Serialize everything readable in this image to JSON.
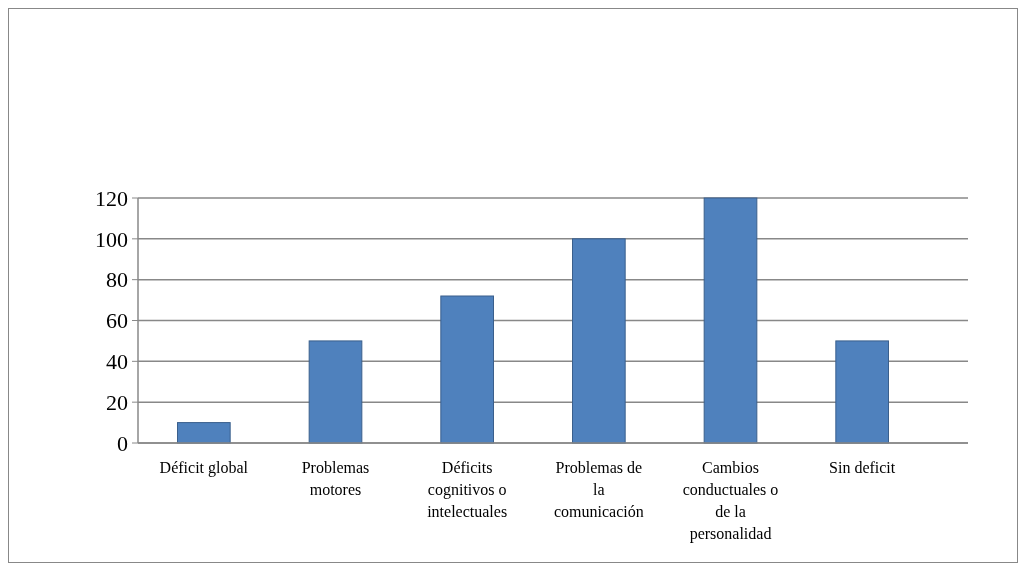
{
  "chart_data": {
    "type": "bar",
    "categories": [
      "Déficit global",
      "Problemas motores",
      "Déficits cognitivos o intelectuales",
      "Problemas de la comunicación",
      "Cambios conductuales o de la personalidad",
      "Sin deficit"
    ],
    "values": [
      10,
      50,
      72,
      100,
      120,
      50
    ],
    "color": "#4f81bd",
    "ylim": [
      0,
      120
    ],
    "yticks": [
      0,
      20,
      40,
      60,
      80,
      100,
      120
    ],
    "grid": "y"
  }
}
